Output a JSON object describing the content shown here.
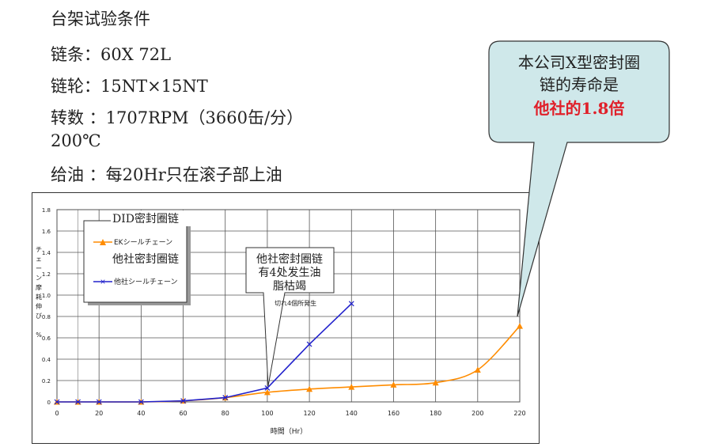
{
  "conditions": {
    "title": "台架试验条件",
    "chain": "链条：60X 72L",
    "sprocket": "链轮：15NT×15NT",
    "speed": "转数 ：1707RPM（3660缶/分）",
    "temperature": "200℃",
    "lubrication": "给油 ：每20Hr只在滚子部上油"
  },
  "legend": {
    "header": "DID密封圈链",
    "series1_label": "EKシールチェーン",
    "series1_sub": "他社密封圈链",
    "series2_label": "他社シールチェーン"
  },
  "note_callout": {
    "line1": "他社密封圈链",
    "line2": "有4处发生油",
    "line3": "脂枯竭",
    "under_text": "切れ4個所発生"
  },
  "big_callout": {
    "line1": "本公司X型密封圈",
    "line2": "链的寿命是",
    "line3": "他社的1.8倍",
    "highlight_color": "#e0202a",
    "fill_color": "#cfe8ea"
  },
  "chart_data": {
    "type": "line",
    "xlabel": "時間（Hr）",
    "ylabel": "チェーン摩耗伸び　%",
    "xlim": [
      0,
      220
    ],
    "ylim": [
      0,
      1.8
    ],
    "x_ticks": [
      "0",
      "20",
      "40",
      "60",
      "80",
      "100",
      "120",
      "140",
      "160",
      "180",
      "200",
      "220"
    ],
    "y_ticks": [
      "0",
      "0.2",
      "0.4",
      "0.6",
      "0.8",
      "1.0",
      "1.2",
      "1.4",
      "1.6",
      "1.8"
    ],
    "grid": true,
    "series": [
      {
        "name": "EKシールチェーン",
        "color": "#ff8c00",
        "x": [
          0,
          10,
          20,
          40,
          60,
          80,
          100,
          120,
          140,
          160,
          180,
          200,
          220
        ],
        "y": [
          0,
          0,
          0,
          0,
          0.01,
          0.04,
          0.09,
          0.12,
          0.14,
          0.16,
          0.18,
          0.3,
          0.71
        ]
      },
      {
        "name": "他社シールチェーン",
        "color": "#2222cc",
        "x": [
          0,
          10,
          20,
          40,
          60,
          80,
          100,
          120,
          140
        ],
        "y": [
          0,
          0,
          0,
          0,
          0.01,
          0.04,
          0.13,
          0.54,
          0.92
        ]
      }
    ]
  }
}
